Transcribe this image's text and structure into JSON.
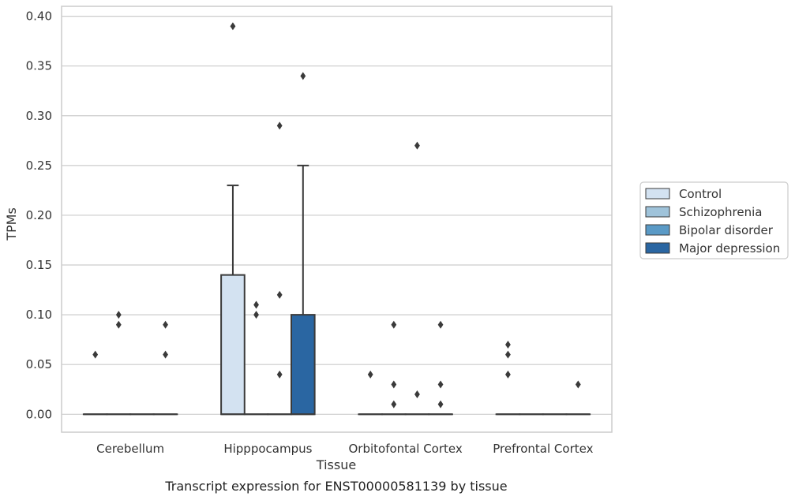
{
  "chart_data": {
    "type": "box",
    "caption": "Transcript expression for ENST00000581139 by tissue",
    "xlabel": "Tissue",
    "ylabel": "TPMs",
    "ylim": [
      -0.018,
      0.41
    ],
    "yticks": [
      0.0,
      0.05,
      0.1,
      0.15,
      0.2,
      0.25,
      0.3,
      0.35,
      0.4
    ],
    "ytick_labels": [
      "0.00",
      "0.05",
      "0.10",
      "0.15",
      "0.20",
      "0.25",
      "0.30",
      "0.35",
      "0.40"
    ],
    "grid": "horizontal",
    "legend_position": "right",
    "categories": [
      "Cerebellum",
      "Hipppocampus",
      "Orbitofontal Cortex",
      "Prefrontal Cortex"
    ],
    "series": [
      {
        "name": "Control",
        "color": "#d3e2f1",
        "boxes": [
          {
            "q1": 0,
            "median": 0,
            "q3": 0,
            "whisker_low": 0,
            "whisker_high": 0,
            "outliers": [
              0.06
            ]
          },
          {
            "q1": 0,
            "median": 0,
            "q3": 0.14,
            "whisker_low": 0,
            "whisker_high": 0.23,
            "outliers": [
              0.39
            ]
          },
          {
            "q1": 0,
            "median": 0,
            "q3": 0,
            "whisker_low": 0,
            "whisker_high": 0,
            "outliers": [
              0.04
            ]
          },
          {
            "q1": 0,
            "median": 0,
            "q3": 0,
            "whisker_low": 0,
            "whisker_high": 0,
            "outliers": [
              0.04,
              0.06,
              0.07
            ]
          }
        ]
      },
      {
        "name": "Schizophrenia",
        "color": "#9fc3da",
        "boxes": [
          {
            "q1": 0,
            "median": 0,
            "q3": 0,
            "whisker_low": 0,
            "whisker_high": 0,
            "outliers": [
              0.09,
              0.1
            ]
          },
          {
            "q1": 0,
            "median": 0,
            "q3": 0,
            "whisker_low": 0,
            "whisker_high": 0,
            "outliers": [
              0.1,
              0.11
            ]
          },
          {
            "q1": 0,
            "median": 0,
            "q3": 0,
            "whisker_low": 0,
            "whisker_high": 0,
            "outliers": [
              0.01,
              0.03,
              0.09
            ]
          },
          {
            "q1": 0,
            "median": 0,
            "q3": 0,
            "whisker_low": 0,
            "whisker_high": 0,
            "outliers": []
          }
        ]
      },
      {
        "name": "Bipolar disorder",
        "color": "#5a9ac6",
        "boxes": [
          {
            "q1": 0,
            "median": 0,
            "q3": 0,
            "whisker_low": 0,
            "whisker_high": 0,
            "outliers": []
          },
          {
            "q1": 0,
            "median": 0,
            "q3": 0,
            "whisker_low": 0,
            "whisker_high": 0,
            "outliers": [
              0.04,
              0.12,
              0.29
            ]
          },
          {
            "q1": 0,
            "median": 0,
            "q3": 0,
            "whisker_low": 0,
            "whisker_high": 0,
            "outliers": [
              0.02,
              0.27
            ]
          },
          {
            "q1": 0,
            "median": 0,
            "q3": 0,
            "whisker_low": 0,
            "whisker_high": 0,
            "outliers": []
          }
        ]
      },
      {
        "name": "Major depression",
        "color": "#2a66a2",
        "boxes": [
          {
            "q1": 0,
            "median": 0,
            "q3": 0,
            "whisker_low": 0,
            "whisker_high": 0,
            "outliers": [
              0.06,
              0.09
            ]
          },
          {
            "q1": 0,
            "median": 0,
            "q3": 0.1,
            "whisker_low": 0,
            "whisker_high": 0.25,
            "outliers": [
              0.34
            ]
          },
          {
            "q1": 0,
            "median": 0,
            "q3": 0,
            "whisker_low": 0,
            "whisker_high": 0,
            "outliers": [
              0.01,
              0.03,
              0.09
            ]
          },
          {
            "q1": 0,
            "median": 0,
            "q3": 0,
            "whisker_low": 0,
            "whisker_high": 0,
            "outliers": [
              0.03
            ]
          }
        ]
      }
    ]
  }
}
